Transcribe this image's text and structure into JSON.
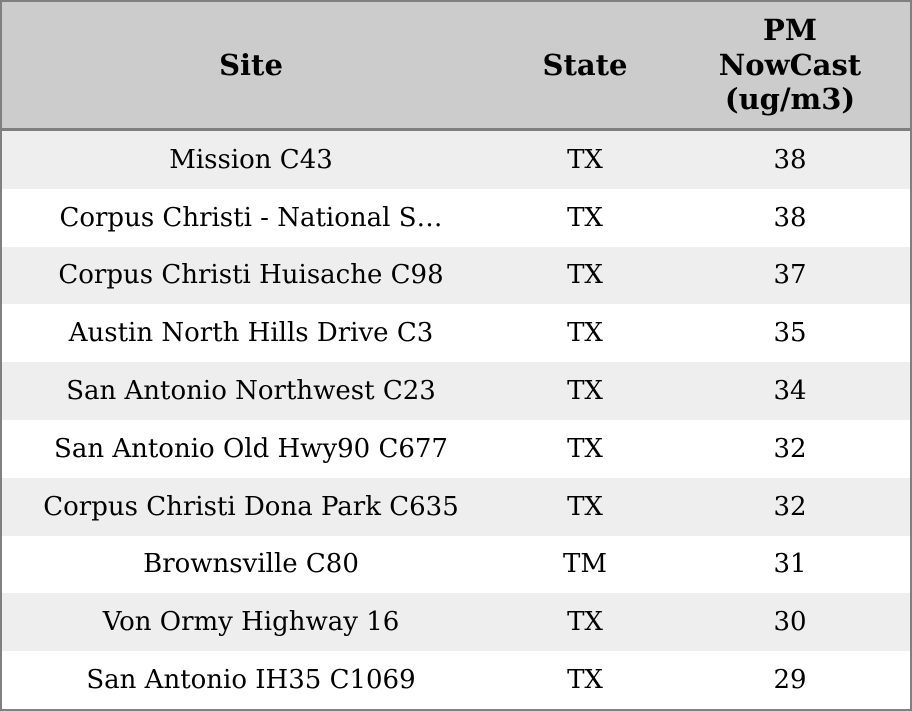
{
  "colors": {
    "header_bg": "#cccccc",
    "row_bg": "#ffffff",
    "row_alt_bg": "#eeeeee",
    "border": "#808080",
    "header_separator": "#7f7f7f",
    "text": "#000000"
  },
  "table": {
    "columns": {
      "site": "Site",
      "state": "State",
      "pm": "PM NowCast (ug/m3)"
    },
    "rows": [
      {
        "site": "Mission C43",
        "state": "TX",
        "pm": 38
      },
      {
        "site": "Corpus Christi - National S…",
        "state": "TX",
        "pm": 38
      },
      {
        "site": "Corpus Christi Huisache C98",
        "state": "TX",
        "pm": 37
      },
      {
        "site": "Austin North Hills Drive C3",
        "state": "TX",
        "pm": 35
      },
      {
        "site": "San Antonio Northwest C23",
        "state": "TX",
        "pm": 34
      },
      {
        "site": "San Antonio Old Hwy90 C677",
        "state": "TX",
        "pm": 32
      },
      {
        "site": "Corpus Christi Dona Park C635",
        "state": "TX",
        "pm": 32
      },
      {
        "site": "Brownsville C80",
        "state": "TM",
        "pm": 31
      },
      {
        "site": "Von Ormy Highway 16",
        "state": "TX",
        "pm": 30
      },
      {
        "site": "San Antonio IH35 C1069",
        "state": "TX",
        "pm": 29
      }
    ]
  },
  "chart_data": {
    "type": "table",
    "columns": [
      "Site",
      "State",
      "PM NowCast (ug/m3)"
    ],
    "rows": [
      [
        "Mission C43",
        "TX",
        38
      ],
      [
        "Corpus Christi - National S…",
        "TX",
        38
      ],
      [
        "Corpus Christi Huisache C98",
        "TX",
        37
      ],
      [
        "Austin North Hills Drive C3",
        "TX",
        35
      ],
      [
        "San Antonio Northwest C23",
        "TX",
        34
      ],
      [
        "San Antonio Old Hwy90 C677",
        "TX",
        32
      ],
      [
        "Corpus Christi Dona Park C635",
        "TX",
        32
      ],
      [
        "Brownsville C80",
        "TM",
        31
      ],
      [
        "Von Ormy Highway 16",
        "TX",
        30
      ],
      [
        "San Antonio IH35 C1069",
        "TX",
        29
      ]
    ],
    "title": "",
    "layout_hints": {
      "alternating_rows": true,
      "first_data_row_shaded": true,
      "all_cells_center_aligned": true
    }
  }
}
